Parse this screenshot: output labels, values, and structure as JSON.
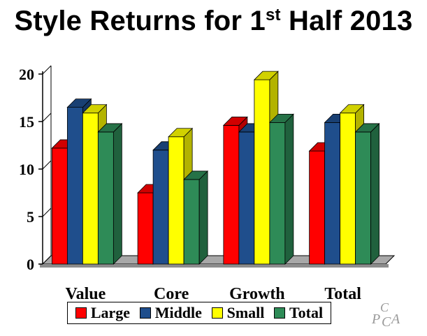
{
  "title_main": "Style Returns for 1",
  "title_sup": "st",
  "title_tail": " Half 2013",
  "colors": {
    "large": "#ff0000",
    "middle": "#1f4e8c",
    "small": "#ffff00",
    "total": "#2e8b57"
  },
  "logo_text": "PCPA",
  "chart_data": {
    "type": "bar",
    "title": "Style Returns for 1st Half 2013",
    "categories": [
      "Value",
      "Core",
      "Growth",
      "Total"
    ],
    "series": [
      {
        "name": "Large",
        "values": [
          12.2,
          7.5,
          14.6,
          11.9
        ]
      },
      {
        "name": "Middle",
        "values": [
          16.5,
          12.0,
          13.9,
          14.9
        ]
      },
      {
        "name": "Small",
        "values": [
          15.9,
          13.4,
          19.4,
          15.9
        ]
      },
      {
        "name": "Total",
        "values": [
          13.9,
          8.9,
          14.9,
          13.9
        ]
      }
    ],
    "ylim": [
      0,
      20
    ],
    "yticks": [
      0,
      5,
      10,
      15,
      20
    ],
    "legend_position": "bottom",
    "grid": false
  }
}
